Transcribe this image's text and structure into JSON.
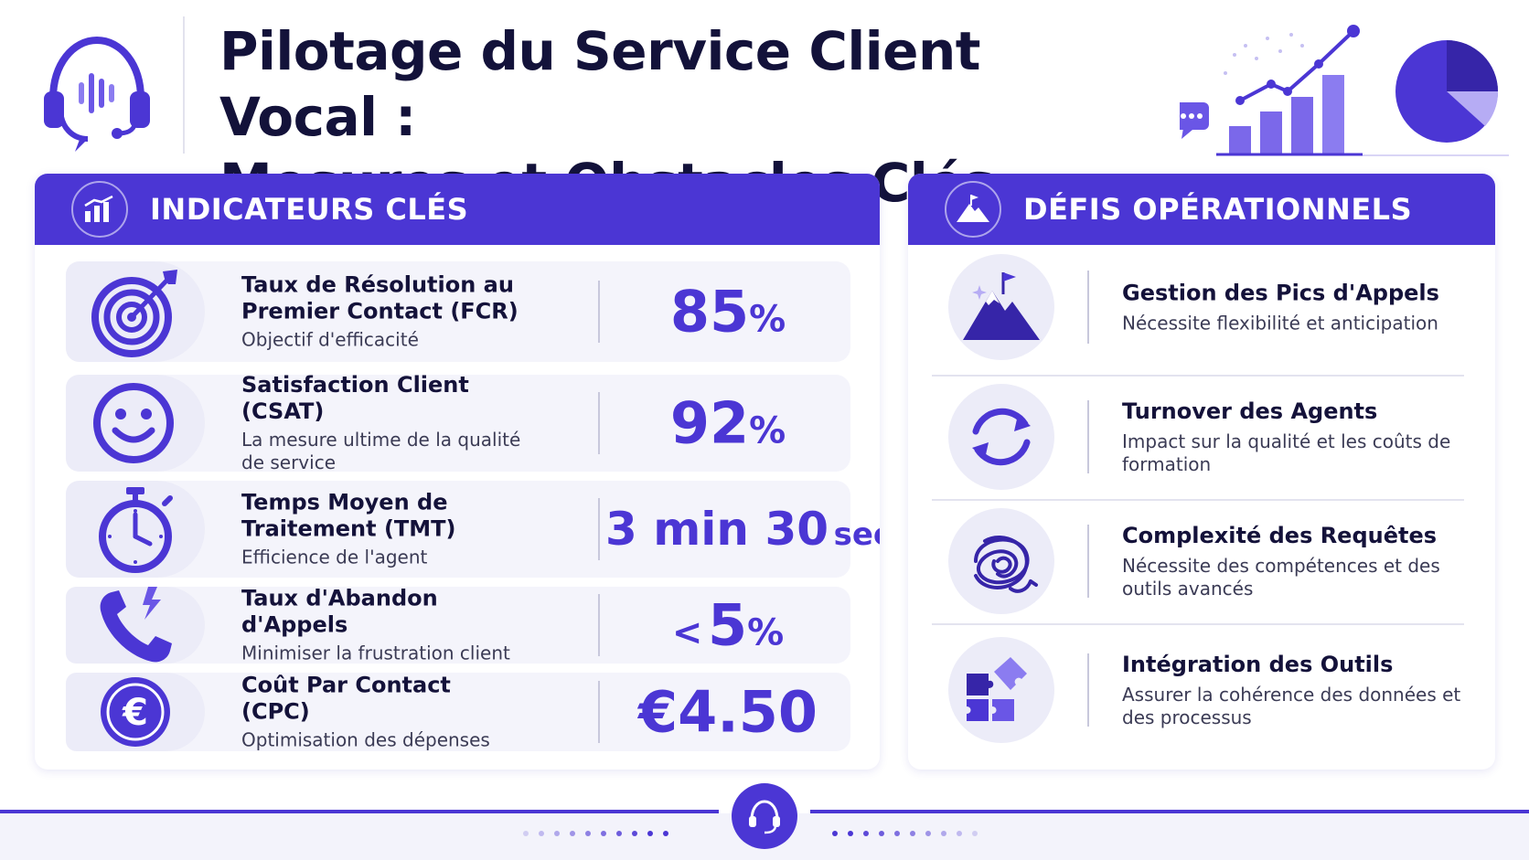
{
  "header": {
    "title_line1": "Pilotage du Service Client Vocal :",
    "title_line2": "Mesures et Obstacles Clés",
    "logo_icon": "headset-voice-icon",
    "art_icon": "growth-chart-icon"
  },
  "indicators": {
    "title": "INDICATEURS CLÉS",
    "icon": "bar-chart-icon",
    "items": [
      {
        "name": "Taux de Résolution au Premier Contact (FCR)",
        "desc": "Objectif d'efficacité",
        "value": "85",
        "unit": "%",
        "icon": "target-icon"
      },
      {
        "name": "Satisfaction Client (CSAT)",
        "desc": "La mesure ultime de la qualité de service",
        "value": "92",
        "unit": "%",
        "icon": "smiley-icon"
      },
      {
        "name": "Temps Moyen de Traitement (TMT)",
        "desc": "Efficience de l'agent",
        "value": "3 min 30",
        "unit": "sec",
        "icon": "stopwatch-icon"
      },
      {
        "name": "Taux d'Abandon d'Appels",
        "desc": "Minimiser la frustration client",
        "value_prefix": "<",
        "value": "5",
        "unit": "%",
        "icon": "phone-icon"
      },
      {
        "name": "Coût Par Contact (CPC)",
        "desc": "Optimisation des dépenses",
        "value": "€4.50",
        "unit": "",
        "icon": "euro-coin-icon"
      }
    ]
  },
  "challenges": {
    "title": "DÉFIS OPÉRATIONNELS",
    "icon": "mountain-flag-icon",
    "items": [
      {
        "name": "Gestion des Pics d'Appels",
        "desc": "Nécessite flexibilité et anticipation",
        "icon": "mountain-peak-icon"
      },
      {
        "name": "Turnover des Agents",
        "desc": "Impact sur la qualité et les coûts de formation",
        "icon": "refresh-cycle-icon"
      },
      {
        "name": "Complexité des Requêtes",
        "desc": "Nécessite des compétences et des outils avancés",
        "icon": "tangle-icon"
      },
      {
        "name": "Intégration des Outils",
        "desc": "Assurer la cohérence des données et des processus",
        "icon": "puzzle-icon"
      }
    ]
  },
  "colors": {
    "accent": "#4b36d4",
    "accent_light": "#8b7cf0",
    "text": "#14123a",
    "row_bg": "#f4f4fb"
  }
}
